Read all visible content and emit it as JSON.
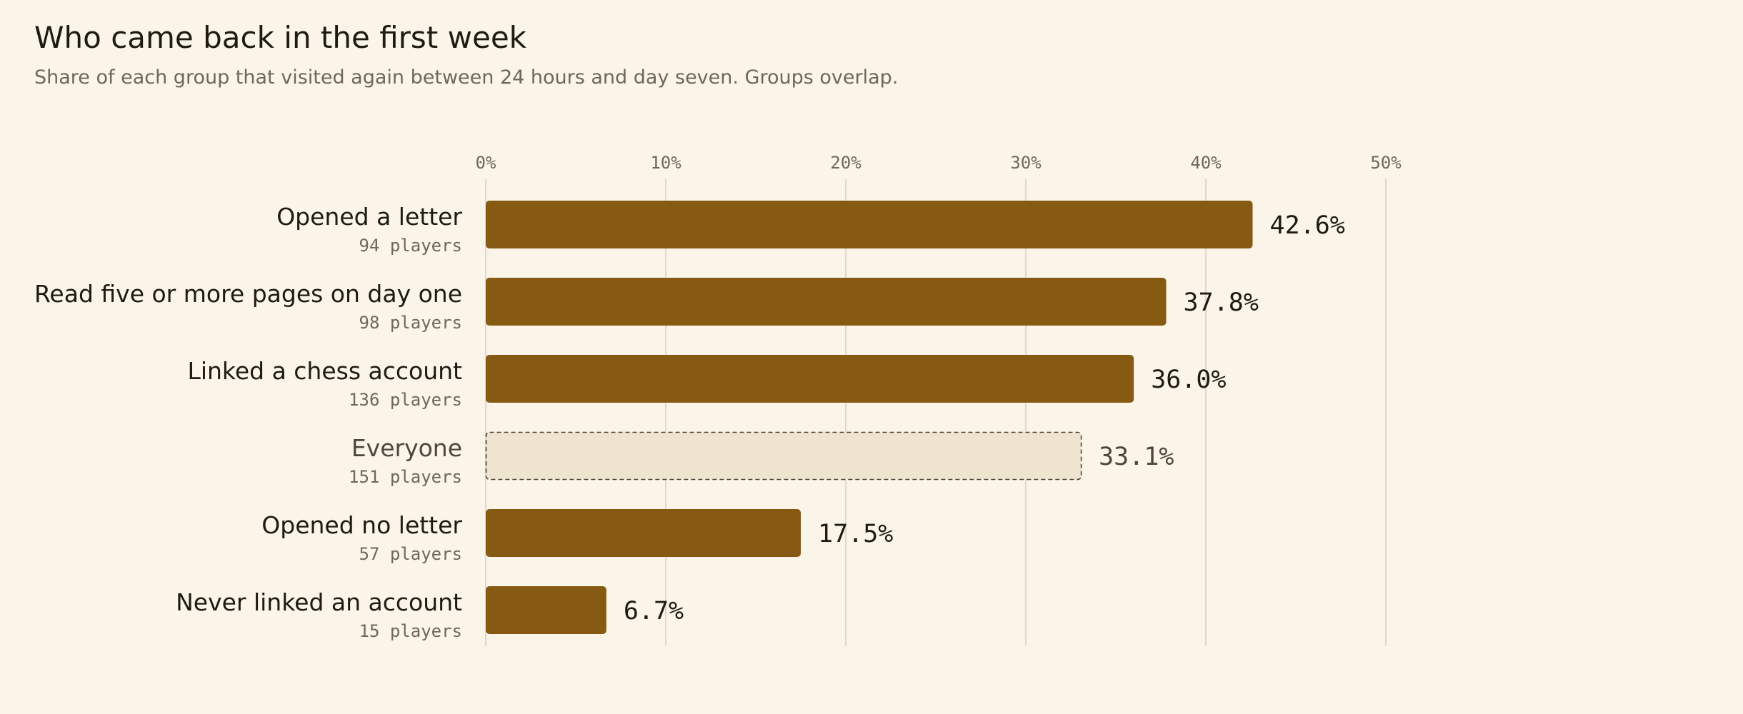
{
  "title": "Who came back in the first week",
  "subtitle": "Share of each group that visited again between 24 hours and day seven. Groups overlap.",
  "chart_data": {
    "type": "bar",
    "orientation": "horizontal",
    "title": "Who came back in the first week",
    "subtitle": "Share of each group that visited again between 24 hours and day seven. Groups overlap.",
    "xlabel": "",
    "ylabel": "",
    "xlim": [
      0,
      50
    ],
    "ticks": [
      {
        "value": 0,
        "label": "0%"
      },
      {
        "value": 10,
        "label": "10%"
      },
      {
        "value": 20,
        "label": "20%"
      },
      {
        "value": 30,
        "label": "30%"
      },
      {
        "value": 40,
        "label": "40%"
      },
      {
        "value": 50,
        "label": "50%"
      }
    ],
    "grid": true,
    "bars": [
      {
        "category": "Opened a letter",
        "count": "94 players",
        "value": 42.6,
        "value_label": "42.6%",
        "baseline": false
      },
      {
        "category": "Read five or more pages on day one",
        "count": "98 players",
        "value": 37.8,
        "value_label": "37.8%",
        "baseline": false
      },
      {
        "category": "Linked a chess account",
        "count": "136 players",
        "value": 36.0,
        "value_label": "36.0%",
        "baseline": false
      },
      {
        "category": "Everyone",
        "count": "151 players",
        "value": 33.1,
        "value_label": "33.1%",
        "baseline": true
      },
      {
        "category": "Opened no letter",
        "count": "57 players",
        "value": 17.5,
        "value_label": "17.5%",
        "baseline": false
      },
      {
        "category": "Never linked an account",
        "count": "15 players",
        "value": 6.7,
        "value_label": "6.7%",
        "baseline": false
      }
    ],
    "colors": {
      "bar": "#875a13",
      "baseline_fill": "#efe4cf",
      "baseline_stroke": "#4a4339",
      "grid": "#d6d0c3"
    }
  }
}
